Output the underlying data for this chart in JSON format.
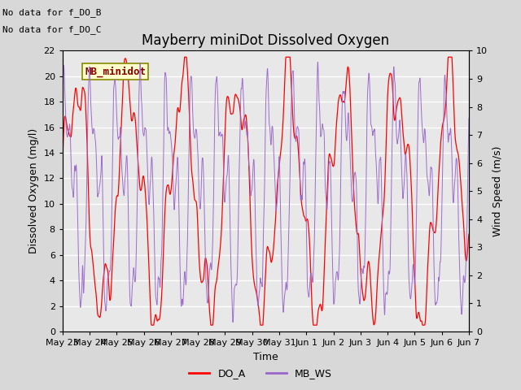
{
  "title": "Mayberry miniDot Dissolved Oxygen",
  "xlabel": "Time",
  "ylabel_left": "Dissolved Oxygen (mg/l)",
  "ylabel_right": "Wind Speed (m/s)",
  "text_no_data": [
    "No data for f_DO_B",
    "No data for f_DO_C"
  ],
  "legend_box_label": "MB_minidot",
  "legend_entries": [
    "DO_A",
    "MB_WS"
  ],
  "legend_colors": [
    "#ff0000",
    "#9966cc"
  ],
  "xlim_days": [
    0,
    16.0
  ],
  "ylim_left": [
    0,
    22
  ],
  "ylim_right": [
    0.0,
    10.0
  ],
  "yticks_left": [
    0,
    2,
    4,
    6,
    8,
    10,
    12,
    14,
    16,
    18,
    20,
    22
  ],
  "yticks_right": [
    0.0,
    1.0,
    2.0,
    3.0,
    4.0,
    5.0,
    6.0,
    7.0,
    8.0,
    9.0,
    10.0
  ],
  "xtick_labels": [
    "May 23",
    "May 24",
    "May 25",
    "May 26",
    "May 27",
    "May 28",
    "May 29",
    "May 30",
    "May 31",
    "Jun 1",
    "Jun 2",
    "Jun 3",
    "Jun 4",
    "Jun 5",
    "Jun 6",
    "Jun 7"
  ],
  "background_color": "#d8d8d8",
  "plot_bg_color": "#e8e8e8",
  "grid_color": "#ffffff",
  "title_fontsize": 12,
  "label_fontsize": 9,
  "tick_fontsize": 8,
  "nodata_fontsize": 8,
  "legend_fontsize": 9
}
